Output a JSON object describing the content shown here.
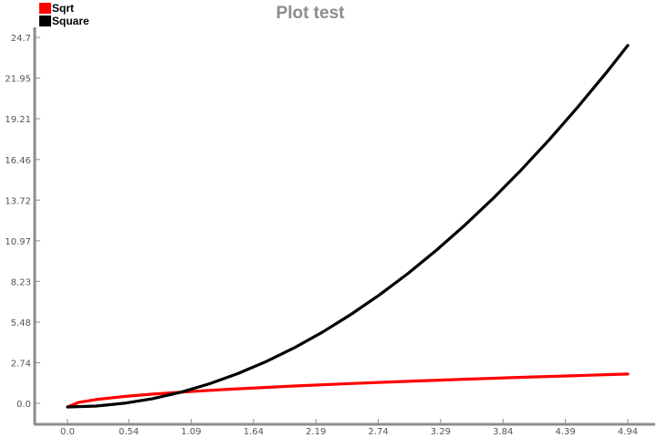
{
  "chart_data": {
    "type": "line",
    "title": "Plot test",
    "xlabel": "",
    "ylabel": "",
    "xlim": [
      -0.28,
      5.08
    ],
    "ylim": [
      -1.0,
      25.9
    ],
    "x_ticks": [
      "0.0",
      "0.54",
      "1.09",
      "1.64",
      "2.19",
      "2.74",
      "3.29",
      "3.84",
      "4.39",
      "4.94"
    ],
    "y_ticks": [
      "0.0",
      "2.74",
      "5.48",
      "8.23",
      "10.97",
      "13.72",
      "16.46",
      "19.21",
      "21.95",
      "24.7"
    ],
    "grid": false,
    "legend_position": "top-left",
    "series": [
      {
        "name": "Sqrt",
        "color": "#ff0000",
        "x": [
          0.0,
          0.1,
          0.25,
          0.5,
          0.75,
          1.0,
          1.25,
          1.5,
          2.0,
          2.5,
          3.0,
          3.5,
          4.0,
          4.5,
          4.94
        ],
        "y": [
          0.0,
          0.316,
          0.5,
          0.707,
          0.866,
          1.0,
          1.118,
          1.225,
          1.414,
          1.581,
          1.732,
          1.871,
          2.0,
          2.121,
          2.223
        ]
      },
      {
        "name": "Square",
        "color": "#000000",
        "x": [
          0.0,
          0.25,
          0.5,
          0.75,
          1.0,
          1.25,
          1.5,
          1.75,
          2.0,
          2.25,
          2.5,
          2.75,
          3.0,
          3.25,
          3.5,
          3.75,
          4.0,
          4.25,
          4.5,
          4.75,
          4.94
        ],
        "y": [
          0.0,
          0.063,
          0.25,
          0.563,
          1.0,
          1.563,
          2.25,
          3.063,
          4.0,
          5.063,
          6.25,
          7.563,
          9.0,
          10.563,
          12.25,
          14.063,
          16.0,
          18.063,
          20.25,
          22.563,
          24.404
        ]
      }
    ]
  }
}
